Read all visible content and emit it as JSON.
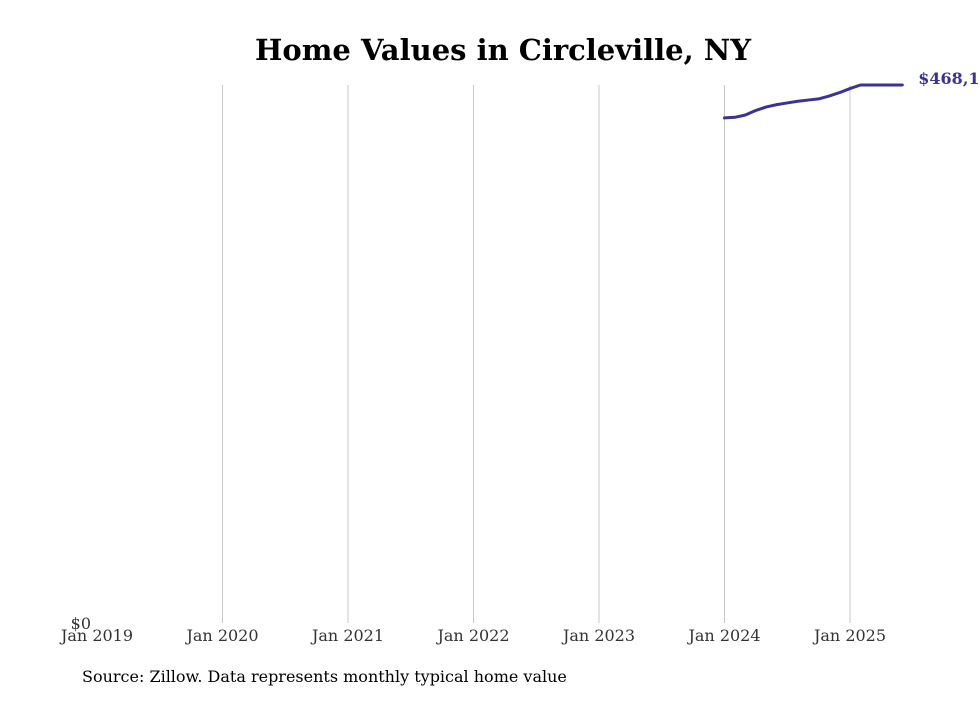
{
  "chart_data": {
    "type": "line",
    "title": "Home Values in Circleville, NY",
    "xlabel": "",
    "ylabel": "",
    "x_ticks": [
      "Jan 2019",
      "Jan 2020",
      "Jan 2021",
      "Jan 2022",
      "Jan 2023",
      "Jan 2024",
      "Jan 2025"
    ],
    "y_tick_label": "$0",
    "ylim": [
      0,
      468100
    ],
    "xlim": [
      "2019-01",
      "2025-07"
    ],
    "grid": "vertical",
    "line_color": "#3a3393",
    "end_label": "$468,1",
    "series": [
      {
        "x": [
          "2024-01",
          "2024-02",
          "2024-03",
          "2024-04",
          "2024-05",
          "2024-06",
          "2024-07",
          "2024-08",
          "2024-09",
          "2024-10",
          "2024-11",
          "2024-12",
          "2025-01",
          "2025-02",
          "2025-03",
          "2025-04",
          "2025-05",
          "2025-06"
        ],
        "values": [
          439500,
          440000,
          442000,
          446000,
          449000,
          451000,
          452500,
          454000,
          455000,
          456000,
          458500,
          461500,
          465000,
          468100,
          468100,
          468100,
          468100,
          468100
        ]
      }
    ]
  },
  "source_text": "Source: Zillow. Data represents monthly typical home value"
}
